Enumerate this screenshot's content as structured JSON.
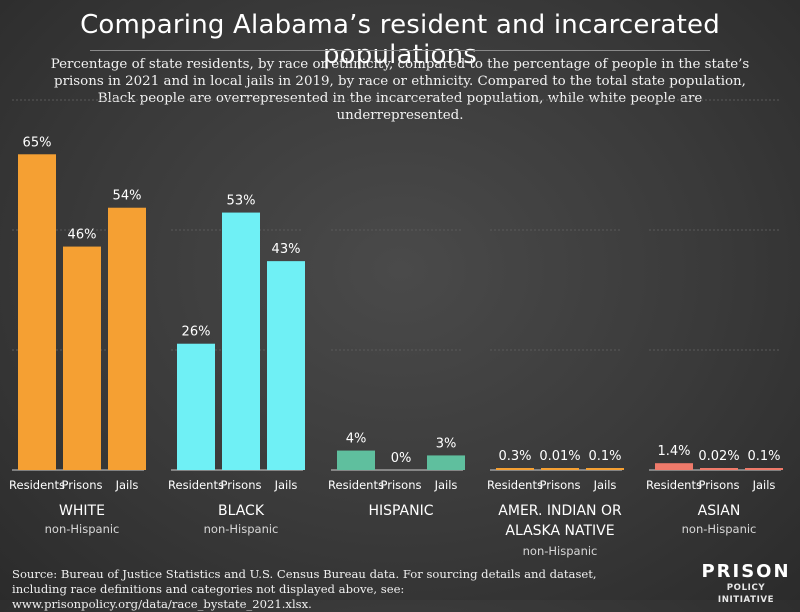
{
  "title": "Comparing Alabama’s resident and incarcerated populations",
  "subtitle": "Percentage of state residents, by race or ethnicity, compared to the percentage of people in the state’s prisons in 2021 and in local jails in 2019, by race or ethnicity. Compared to the total state population, Black people are overrepresented in the incarcerated population, while white people are underrepresented.",
  "source": "Source: Bureau of Justice Statistics and U.S. Census Bureau data. For sourcing details and dataset, including race definitions and categories not displayed above, see: www.prisonpolicy.org/data/race_bystate_2021.xlsx.",
  "logo": {
    "line1": "PRISON",
    "line2": "POLICY INITIATIVE"
  },
  "colors": {
    "white": "#f5a033",
    "black": "#6ff0f5",
    "hispanic": "#5fbf9e",
    "amer_indian": "#f5a033",
    "asian": "#ef7a6a",
    "grid": "#5a5a5a",
    "axis": "#cfcfcf"
  },
  "chart_data": {
    "type": "bar",
    "ylim": [
      0,
      70
    ],
    "bar_labels": [
      "Residents",
      "Prisons",
      "Jails"
    ],
    "groups": [
      {
        "name": "WHITE",
        "subtitle": "non-Hispanic",
        "color_key": "white",
        "values": [
          65,
          46,
          54
        ],
        "labels": [
          "65%",
          "46%",
          "54%"
        ]
      },
      {
        "name": "BLACK",
        "subtitle": "non-Hispanic",
        "color_key": "black",
        "values": [
          26,
          53,
          43
        ],
        "labels": [
          "26%",
          "53%",
          "43%"
        ]
      },
      {
        "name": "HISPANIC",
        "subtitle": "",
        "color_key": "hispanic",
        "values": [
          4,
          0,
          3
        ],
        "labels": [
          "4%",
          "0%",
          "3%"
        ]
      },
      {
        "name": "AMER. INDIAN OR\nALASKA NATIVE",
        "subtitle": "non-Hispanic",
        "color_key": "amer_indian",
        "values": [
          0.3,
          0.01,
          0.1
        ],
        "labels": [
          "0.3%",
          "0.01%",
          "0.1%"
        ]
      },
      {
        "name": "ASIAN",
        "subtitle": "non-Hispanic",
        "color_key": "asian",
        "values": [
          1.4,
          0.02,
          0.1
        ],
        "labels": [
          "1.4%",
          "0.02%",
          "0.1%"
        ]
      }
    ]
  }
}
